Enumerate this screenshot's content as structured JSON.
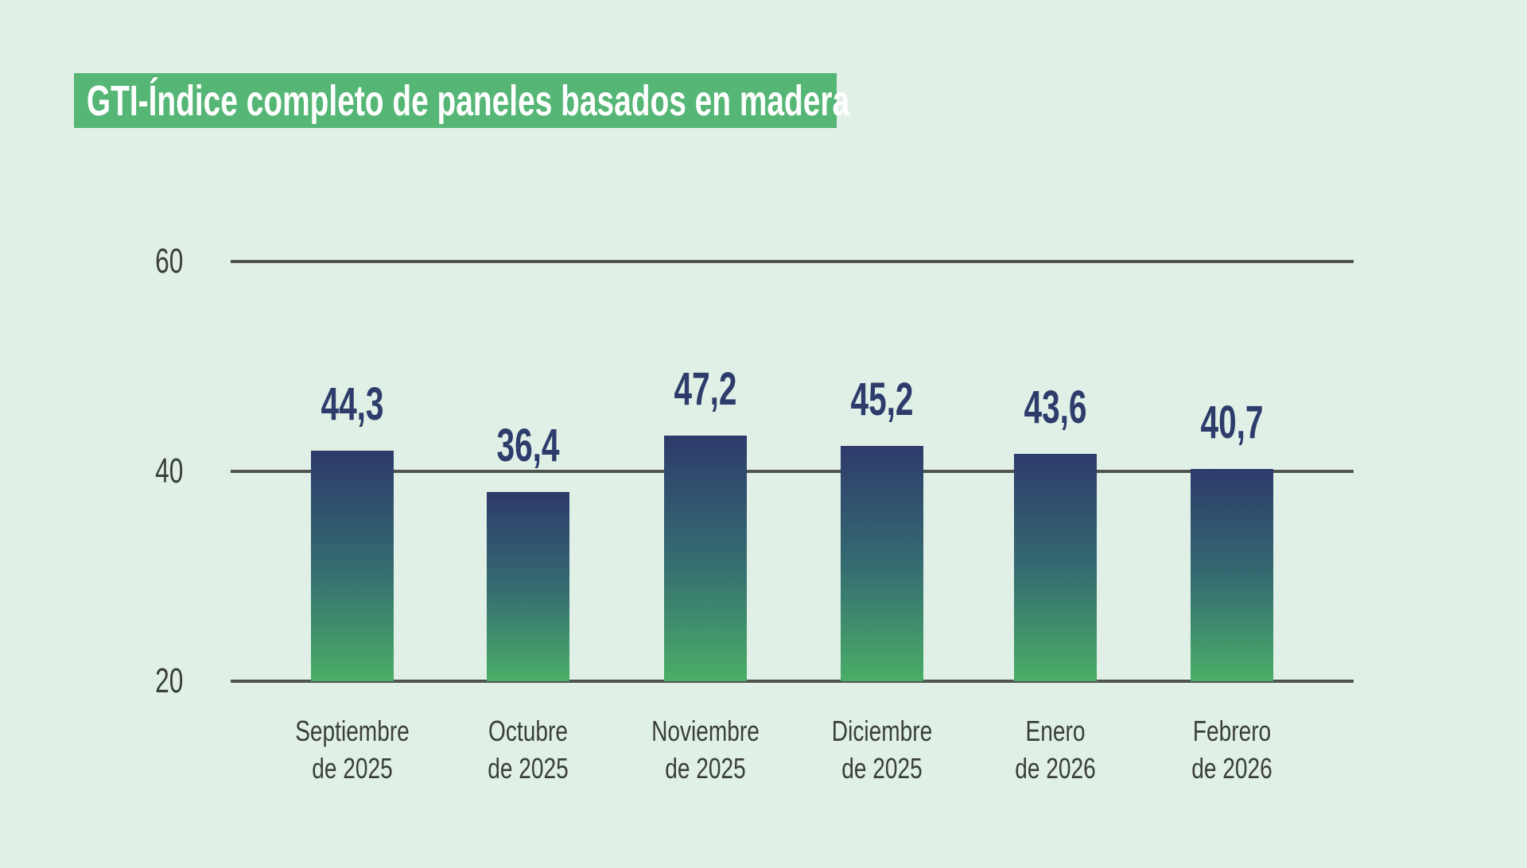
{
  "title": "GTI-Índice completo de paneles basados en madera",
  "colors": {
    "background": "#e0f0e6",
    "banner_green": "#55b675",
    "title_text": "#ffffff",
    "value_label_navy": "#2d3c6b",
    "bar_gradient_top": "#2d3a6b",
    "bar_gradient_mid": "#356d71",
    "bar_gradient_bottom": "#4aae67",
    "gridline_gray": "#50544f",
    "axis_text_gray": "#3a3e3a"
  },
  "chart_data": {
    "type": "bar",
    "title": "GTI-Índice completo de paneles basados en madera",
    "categories": [
      "Septiembre de 2025",
      "Octubre de 2025",
      "Noviembre de 2025",
      "Diciembre de 2025",
      "Enero de 2026",
      "Febrero de 2026"
    ],
    "category_lines": [
      [
        "Septiembre",
        "de 2025"
      ],
      [
        "Octubre",
        "de 2025"
      ],
      [
        "Noviembre",
        "de 2025"
      ],
      [
        "Diciembre",
        "de 2025"
      ],
      [
        "Enero",
        "de 2026"
      ],
      [
        "Febrero",
        "de 2026"
      ]
    ],
    "values": [
      44.3,
      36.4,
      47.2,
      45.2,
      43.6,
      40.7
    ],
    "value_labels": [
      "44,3",
      "36,4",
      "47,2",
      "45,2",
      "43,6",
      "40,7"
    ],
    "yticks": [
      20,
      40,
      60
    ],
    "ytick_labels": [
      "20",
      "40",
      "60"
    ],
    "ylim": [
      20,
      60
    ],
    "xlabel": "",
    "ylabel": "",
    "grid": "horizontal",
    "legend": "none",
    "decimal_separator": ","
  }
}
